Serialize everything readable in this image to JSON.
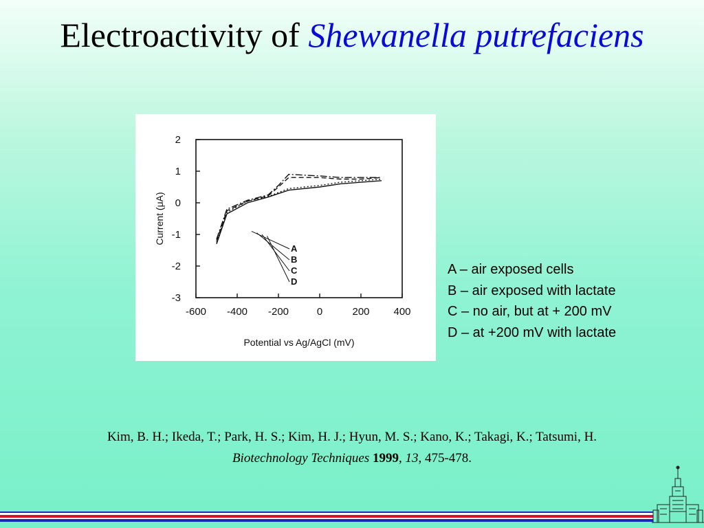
{
  "slide": {
    "title_plain": "Electroactivity of",
    "title_italic": "Shewanella putrefaciens"
  },
  "chart_data": {
    "type": "line",
    "xlabel": "Potential vs Ag/AgCl (mV)",
    "ylabel": "Current (μA)",
    "xlim": [
      -600,
      400
    ],
    "ylim": [
      -3,
      2
    ],
    "x_ticks": [
      "-600",
      "-400",
      "-200",
      "0",
      "200",
      "400"
    ],
    "y_ticks": [
      "2",
      "1",
      "0",
      "-1",
      "-2",
      "-3"
    ],
    "series": [
      {
        "name": "A",
        "x": [
          -500,
          -450,
          -350,
          -250,
          -150,
          0,
          100,
          200,
          300
        ],
        "y": [
          -1.3,
          -0.35,
          0.0,
          0.18,
          0.4,
          0.5,
          0.6,
          0.65,
          0.7
        ]
      },
      {
        "name": "B",
        "x": [
          -500,
          -450,
          -350,
          -250,
          -150,
          0,
          100,
          200,
          300
        ],
        "y": [
          -1.25,
          -0.3,
          0.05,
          0.2,
          0.45,
          0.55,
          0.65,
          0.7,
          0.75
        ]
      },
      {
        "name": "C",
        "x": [
          -500,
          -450,
          -350,
          -250,
          -200,
          -150,
          0,
          100,
          200,
          300
        ],
        "y": [
          -1.2,
          -0.25,
          0.05,
          0.22,
          0.5,
          0.8,
          0.8,
          0.75,
          0.75,
          0.8
        ]
      },
      {
        "name": "D",
        "x": [
          -500,
          -450,
          -350,
          -250,
          -200,
          -150,
          0,
          100,
          200,
          300
        ],
        "y": [
          -1.15,
          -0.2,
          0.08,
          0.25,
          0.55,
          0.9,
          0.85,
          0.8,
          0.8,
          0.8
        ]
      }
    ],
    "annotations": [
      "A",
      "B",
      "C",
      "D"
    ],
    "grid": false
  },
  "legend": {
    "items": [
      "A – air exposed cells",
      "B – air exposed with lactate",
      "C – no air, but at + 200 mV",
      "D – at +200 mV with lactate"
    ]
  },
  "citation": {
    "authors": "Kim, B. H.; Ikeda, T.; Park, H. S.; Kim, H. J.; Hyun, M. S.; Kano, K.; Takagi, K.; Tatsumi, H.",
    "journal": "Biotechnology Techniques",
    "year": "1999",
    "volume": "13",
    "pages": ", 475-478."
  },
  "colors": {
    "title_accent": "#0a0ad6",
    "stripe_red": "#d8102a",
    "stripe_blue": "#1a2ab8"
  }
}
